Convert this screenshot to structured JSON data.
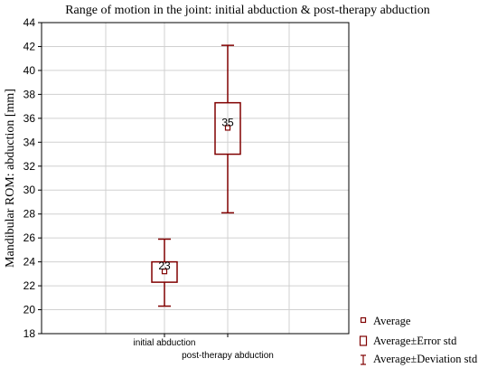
{
  "chart_data": {
    "type": "box",
    "title": "Range of motion in the joint: initial abduction & post-therapy abduction",
    "xlabel": "",
    "ylabel": "Mandibular ROM: abduction [mm]",
    "ylim": [
      18,
      44
    ],
    "yticks": [
      18,
      20,
      22,
      24,
      26,
      28,
      30,
      32,
      34,
      36,
      38,
      40,
      42,
      44
    ],
    "grid": true,
    "legend_placement": "bottom-right",
    "categories": [
      "initial abduction",
      "post-therapy abduction"
    ],
    "series": [
      {
        "category": "initial abduction",
        "mean": 23.2,
        "mean_label": "23",
        "error_low": 22.3,
        "error_high": 24.0,
        "deviation_low": 20.3,
        "deviation_high": 25.9
      },
      {
        "category": "post-therapy abduction",
        "mean": 35.2,
        "mean_label": "35",
        "error_low": 33.0,
        "error_high": 37.3,
        "deviation_low": 28.1,
        "deviation_high": 42.1
      }
    ],
    "legend": [
      {
        "marker": "average-marker-icon",
        "label": "Average"
      },
      {
        "marker": "error-box-icon",
        "label": "Average±Error std"
      },
      {
        "marker": "whisker-icon",
        "label": "Average±Deviation std"
      }
    ],
    "colors": {
      "series": "#800000",
      "grid": "#d0d0d0",
      "axis": "#000000"
    }
  }
}
